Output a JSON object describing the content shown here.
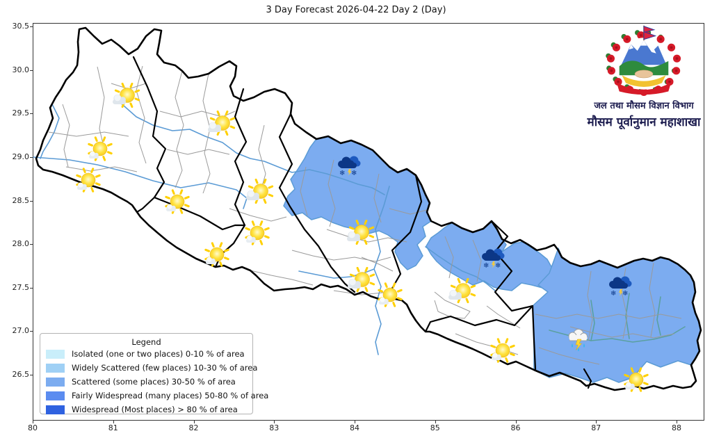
{
  "title": "3 Day Forecast 2026-04-22 Day 2 (Day)",
  "axes": {
    "x_ticks": [
      {
        "label": "80",
        "value": 80
      },
      {
        "label": "81",
        "value": 81
      },
      {
        "label": "82",
        "value": 82
      },
      {
        "label": "83",
        "value": 83
      },
      {
        "label": "84",
        "value": 84
      },
      {
        "label": "85",
        "value": 85
      },
      {
        "label": "86",
        "value": 86
      },
      {
        "label": "87",
        "value": 87
      },
      {
        "label": "88",
        "value": 88
      }
    ],
    "y_ticks": [
      {
        "label": "30.5",
        "value": 30.5
      },
      {
        "label": "30.0",
        "value": 30.0
      },
      {
        "label": "29.5",
        "value": 29.5
      },
      {
        "label": "29.0",
        "value": 29.0
      },
      {
        "label": "28.5",
        "value": 28.5
      },
      {
        "label": "28.0",
        "value": 28.0
      },
      {
        "label": "27.5",
        "value": 27.5
      },
      {
        "label": "27.0",
        "value": 27.0
      },
      {
        "label": "26.5",
        "value": 26.5
      }
    ]
  },
  "legend": {
    "title": "Legend",
    "items": [
      {
        "label": "Isolated (one or two places)  0-10 % of area",
        "color": "#c9eefa"
      },
      {
        "label": "Widely Scattered (few places)  10-30 % of area",
        "color": "#9fd0f5"
      },
      {
        "label": "Scattered (some places)  30-50 % of area",
        "color": "#7cacf0"
      },
      {
        "label": "Fairly Widespread (many places)  50-80 % of area",
        "color": "#5b8cf0"
      },
      {
        "label": "Widespread (Most places) > 80 % of area",
        "color": "#2f62e0"
      }
    ]
  },
  "logo": {
    "line1": "जल तथा मौसम विज्ञान विभाग",
    "line2": "मौसम पूर्वानुमान महाशाखा"
  },
  "map": {
    "shaded_level": "Scattered (some places) 30-50 % of area",
    "shaded_color": "#7cacf0",
    "icons": [
      {
        "type": "partly-cloudy",
        "lon": 81.15,
        "lat": 29.67
      },
      {
        "type": "partly-cloudy",
        "lon": 82.33,
        "lat": 29.35
      },
      {
        "type": "mostly-sunny",
        "lon": 80.82,
        "lat": 29.06
      },
      {
        "type": "mostly-sunny",
        "lon": 80.67,
        "lat": 28.7
      },
      {
        "type": "mostly-sunny",
        "lon": 81.78,
        "lat": 28.46
      },
      {
        "type": "partly-cloudy",
        "lon": 82.81,
        "lat": 28.57
      },
      {
        "type": "mostly-sunny",
        "lon": 82.77,
        "lat": 28.1
      },
      {
        "type": "mostly-sunny",
        "lon": 82.27,
        "lat": 27.85
      },
      {
        "type": "snow-showers",
        "lon": 83.94,
        "lat": 28.87
      },
      {
        "type": "partly-cloudy",
        "lon": 84.06,
        "lat": 28.1
      },
      {
        "type": "partly-cloudy",
        "lon": 84.07,
        "lat": 27.55
      },
      {
        "type": "mostly-sunny",
        "lon": 84.42,
        "lat": 27.39
      },
      {
        "type": "partly-cloudy",
        "lon": 85.32,
        "lat": 27.43
      },
      {
        "type": "snow-showers",
        "lon": 85.73,
        "lat": 27.81
      },
      {
        "type": "snow-showers",
        "lon": 87.31,
        "lat": 27.49
      },
      {
        "type": "thunder-rain",
        "lon": 86.78,
        "lat": 26.87
      },
      {
        "type": "mostly-sunny",
        "lon": 85.82,
        "lat": 26.75
      },
      {
        "type": "mostly-sunny",
        "lon": 87.48,
        "lat": 26.41
      }
    ]
  }
}
